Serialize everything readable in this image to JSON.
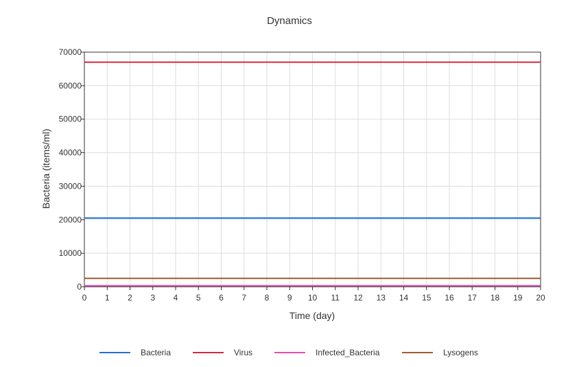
{
  "chart_data": {
    "type": "line",
    "title": "Dynamics",
    "xlabel": "Time (day)",
    "ylabel": "Bacteria (items/ml)",
    "xlim": [
      0,
      20
    ],
    "ylim": [
      0,
      70000
    ],
    "x_ticks": [
      0,
      1,
      2,
      3,
      4,
      5,
      6,
      7,
      8,
      9,
      10,
      11,
      12,
      13,
      14,
      15,
      16,
      17,
      18,
      19,
      20
    ],
    "y_ticks": [
      0,
      10000,
      20000,
      30000,
      40000,
      50000,
      60000,
      70000
    ],
    "grid": true,
    "legend_position": "bottom",
    "series": [
      {
        "name": "Bacteria",
        "color": "#1f6fd6",
        "x": [
          0,
          20
        ],
        "values": [
          20500,
          20500
        ]
      },
      {
        "name": "Virus",
        "color": "#d7263d",
        "x": [
          0,
          20
        ],
        "values": [
          67000,
          67000
        ]
      },
      {
        "name": "Infected_Bacteria",
        "color": "#e84bb0",
        "x": [
          0,
          20
        ],
        "values": [
          300,
          300
        ]
      },
      {
        "name": "Lysogens",
        "color": "#a45a2a",
        "x": [
          0,
          20
        ],
        "values": [
          2500,
          2500
        ]
      }
    ]
  }
}
